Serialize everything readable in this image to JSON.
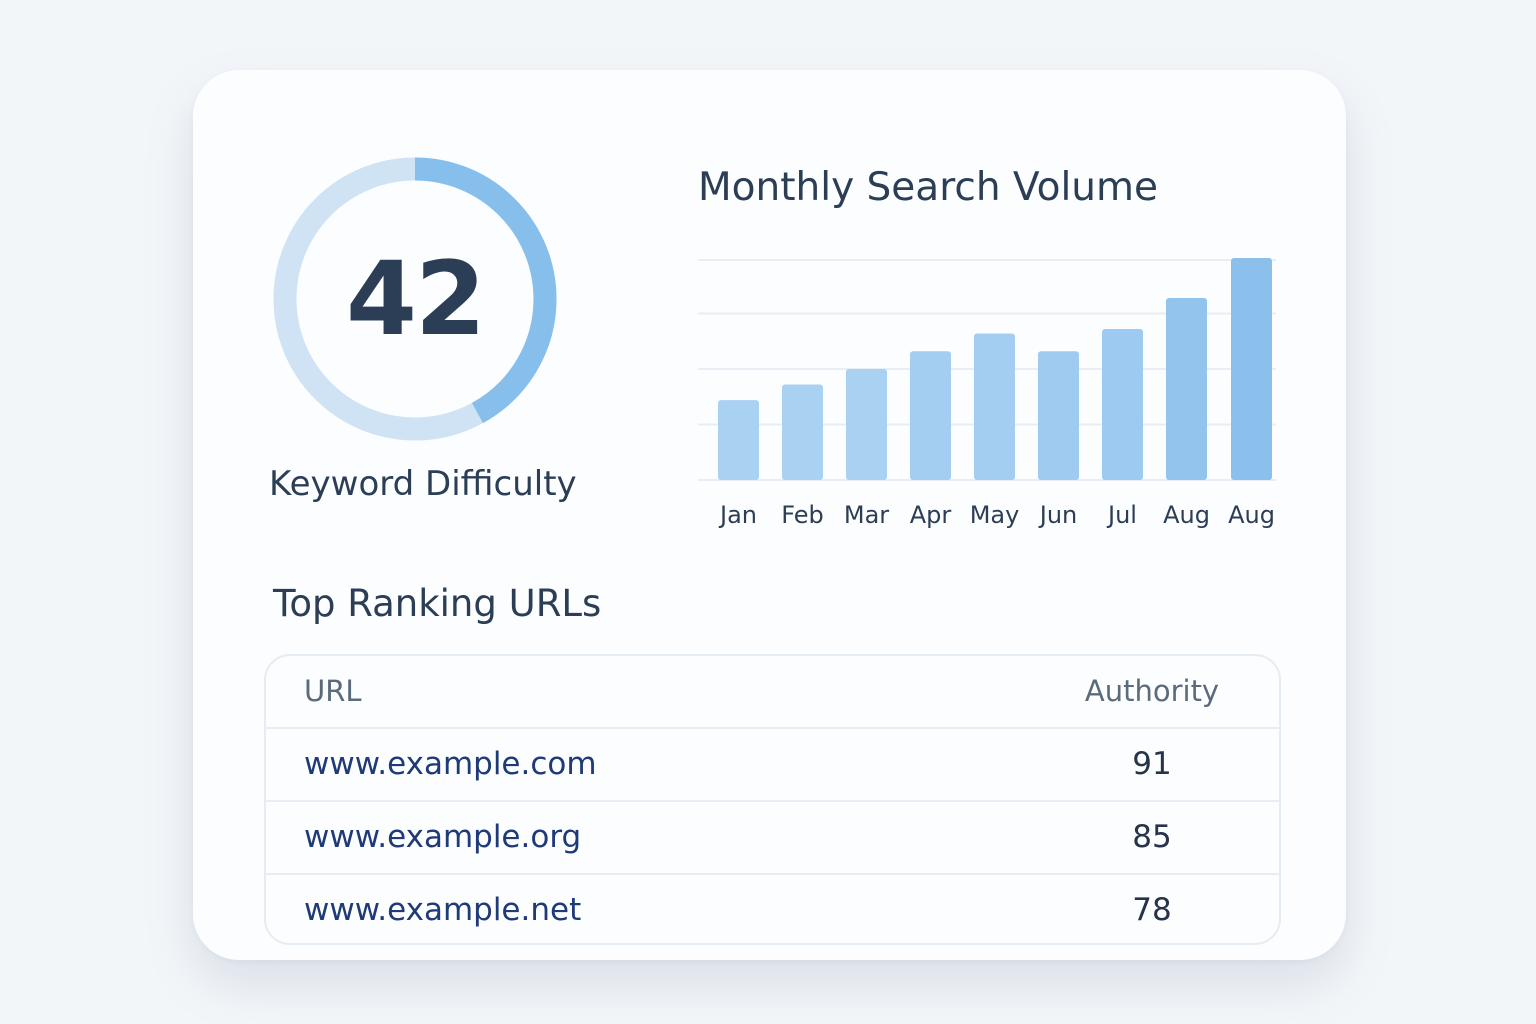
{
  "gauge": {
    "value": "42",
    "max": 100,
    "label": "Keyword Difficulty",
    "track_color": "#cfe3f5",
    "fill_color": "#86bfec"
  },
  "volume": {
    "title": "Monthly Search Volume"
  },
  "chart_data": {
    "type": "bar",
    "title": "Monthly Search Volume",
    "categories": [
      "Jan",
      "Feb",
      "Mar",
      "Apr",
      "May",
      "Jun",
      "Jul",
      "Aug",
      "Aug"
    ],
    "values": [
      36,
      43,
      50,
      58,
      66,
      58,
      68,
      82,
      100
    ],
    "ylim": [
      0,
      100
    ],
    "grid": true,
    "bar_colors": [
      "#a9d1f2",
      "#a9d1f2",
      "#a9d1f2",
      "#a4cef1",
      "#a4cef1",
      "#a0cbf0",
      "#9ccaf0",
      "#92c4ee",
      "#8bc0ed"
    ]
  },
  "ranking": {
    "title": "Top Ranking URLs",
    "columns": [
      "URL",
      "Authority"
    ],
    "rows": [
      {
        "url": "www.example.com",
        "authority": "91"
      },
      {
        "url": "www.example.org",
        "authority": "85"
      },
      {
        "url": "www.example.net",
        "authority": "78"
      }
    ]
  }
}
